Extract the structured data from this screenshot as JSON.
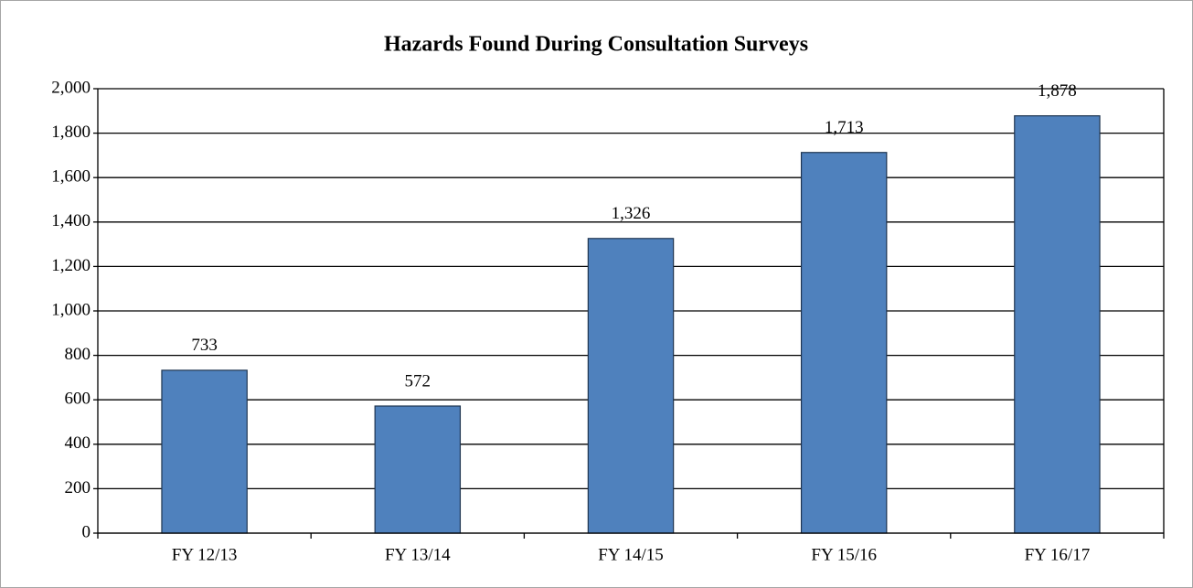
{
  "chart_data": {
    "type": "bar",
    "title": "Hazards Found During Consultation Surveys",
    "categories": [
      "FY 12/13",
      "FY 13/14",
      "FY 14/15",
      "FY 15/16",
      "FY 16/17"
    ],
    "values": [
      733,
      572,
      1326,
      1713,
      1878
    ],
    "value_labels": [
      "733",
      "572",
      "1,326",
      "1,713",
      "1,878"
    ],
    "color": "#4f81bd",
    "ylim": [
      0,
      2000
    ],
    "yticks": [
      0,
      200,
      400,
      600,
      800,
      {
        "value": 1000,
        "label": "1,000"
      },
      {
        "value": 1200,
        "label": "1,200"
      },
      {
        "value": 1400,
        "label": "1,400"
      },
      {
        "value": 1600,
        "label": "1,600"
      },
      {
        "value": 1800,
        "label": "1,800"
      },
      {
        "value": 2000,
        "label": "2,000"
      }
    ],
    "grid": true
  }
}
